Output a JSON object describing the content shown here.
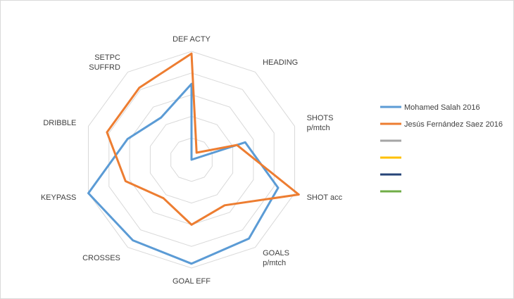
{
  "chart_data": {
    "type": "radar",
    "title": "",
    "axes": [
      {
        "id": "def-acty",
        "lines": [
          "DEF ACTY"
        ]
      },
      {
        "id": "heading",
        "lines": [
          "HEADING"
        ]
      },
      {
        "id": "shots-p-mtch",
        "lines": [
          "SHOTS",
          "p/mtch"
        ]
      },
      {
        "id": "shot-acc",
        "lines": [
          "SHOT acc"
        ]
      },
      {
        "id": "goals-p-mtch",
        "lines": [
          "GOALS",
          "p/mtch"
        ]
      },
      {
        "id": "goal-eff",
        "lines": [
          "GOAL EFF"
        ]
      },
      {
        "id": "crosses",
        "lines": [
          "CROSSES"
        ]
      },
      {
        "id": "keypass",
        "lines": [
          "KEYPASS"
        ]
      },
      {
        "id": "dribble",
        "lines": [
          "DRIBBLE"
        ]
      },
      {
        "id": "setpc-suffrd",
        "lines": [
          "SETPC",
          "SUFFRD"
        ]
      }
    ],
    "range": [
      0,
      5
    ],
    "grid_levels": 5,
    "series": [
      {
        "name": "Mohamed Salah 2016",
        "color": "#5b9bd5",
        "values": [
          3.5,
          0,
          2.6,
          4.2,
          4.5,
          4.8,
          4.6,
          5.0,
          3.1,
          2.4
        ]
      },
      {
        "name": "Jesús Fernández Saez 2016",
        "color": "#ed7d31",
        "values": [
          4.9,
          0.4,
          2.2,
          5.2,
          2.6,
          3.0,
          2.2,
          3.2,
          4.1,
          4.1
        ]
      },
      {
        "name": "",
        "color": "#a5a5a5",
        "values": []
      },
      {
        "name": "",
        "color": "#ffc000",
        "values": []
      },
      {
        "name": "",
        "color": "#264478",
        "values": []
      },
      {
        "name": "",
        "color": "#70ad47",
        "values": []
      }
    ],
    "legend_position": "right"
  }
}
